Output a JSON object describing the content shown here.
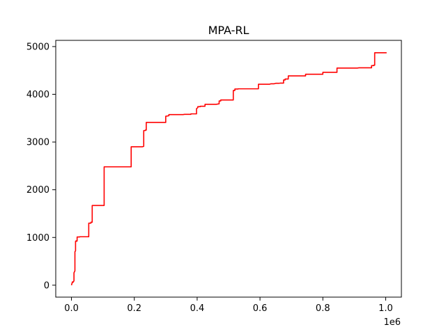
{
  "chart_data": {
    "type": "line",
    "title": "MPA-RL",
    "xlabel": "",
    "ylabel": "",
    "x_scale_label": "1e6",
    "xlim": [
      -0.05,
      1.05
    ],
    "ylim": [
      -250,
      5130
    ],
    "x_ticks": [
      0.0,
      0.2,
      0.4,
      0.6,
      0.8,
      1.0
    ],
    "x_tick_labels": [
      "0.0",
      "0.2",
      "0.4",
      "0.6",
      "0.8",
      "1.0"
    ],
    "y_ticks": [
      0,
      1000,
      2000,
      3000,
      4000,
      5000
    ],
    "y_tick_labels": [
      "0",
      "1000",
      "2000",
      "3000",
      "4000",
      "5000"
    ],
    "grid": false,
    "series": [
      {
        "name": "MPA-RL",
        "color": "#ff0000",
        "x": [
          0,
          0.003,
          0.005,
          0.008,
          0.008,
          0.011,
          0.011,
          0.013,
          0.013,
          0.015,
          0.016,
          0.018,
          0.018,
          0.026,
          0.026,
          0.055,
          0.055,
          0.062,
          0.062,
          0.066,
          0.066,
          0.104,
          0.104,
          0.19,
          0.19,
          0.225,
          0.228,
          0.23,
          0.23,
          0.235,
          0.235,
          0.238,
          0.238,
          0.3,
          0.3,
          0.31,
          0.31,
          0.355,
          0.36,
          0.38,
          0.38,
          0.398,
          0.398,
          0.402,
          0.402,
          0.41,
          0.41,
          0.425,
          0.425,
          0.46,
          0.465,
          0.47,
          0.47,
          0.475,
          0.475,
          0.515,
          0.515,
          0.52,
          0.52,
          0.53,
          0.53,
          0.595,
          0.595,
          0.63,
          0.635,
          0.645,
          0.65,
          0.66,
          0.665,
          0.675,
          0.675,
          0.68,
          0.68,
          0.69,
          0.69,
          0.745,
          0.745,
          0.8,
          0.8,
          0.845,
          0.845,
          0.91,
          0.915,
          0.955,
          0.955,
          0.962,
          0.962,
          0.965,
          0.965,
          1.003
        ],
        "y": [
          0,
          70,
          60,
          90,
          260,
          300,
          700,
          720,
          920,
          930,
          920,
          925,
          1010,
          1010,
          1015,
          1015,
          1300,
          1300,
          1320,
          1320,
          1670,
          1670,
          2480,
          2480,
          2900,
          2900,
          2905,
          2910,
          3240,
          3240,
          3250,
          3250,
          3410,
          3410,
          3540,
          3550,
          3575,
          3575,
          3580,
          3580,
          3590,
          3590,
          3700,
          3720,
          3740,
          3740,
          3750,
          3750,
          3790,
          3790,
          3795,
          3800,
          3860,
          3860,
          3880,
          3880,
          4080,
          4080,
          4110,
          4110,
          4115,
          4115,
          4210,
          4210,
          4220,
          4220,
          4230,
          4230,
          4235,
          4235,
          4300,
          4300,
          4320,
          4320,
          4385,
          4385,
          4420,
          4420,
          4460,
          4460,
          4550,
          4550,
          4555,
          4555,
          4600,
          4600,
          4610,
          4610,
          4870,
          4870
        ]
      }
    ]
  }
}
